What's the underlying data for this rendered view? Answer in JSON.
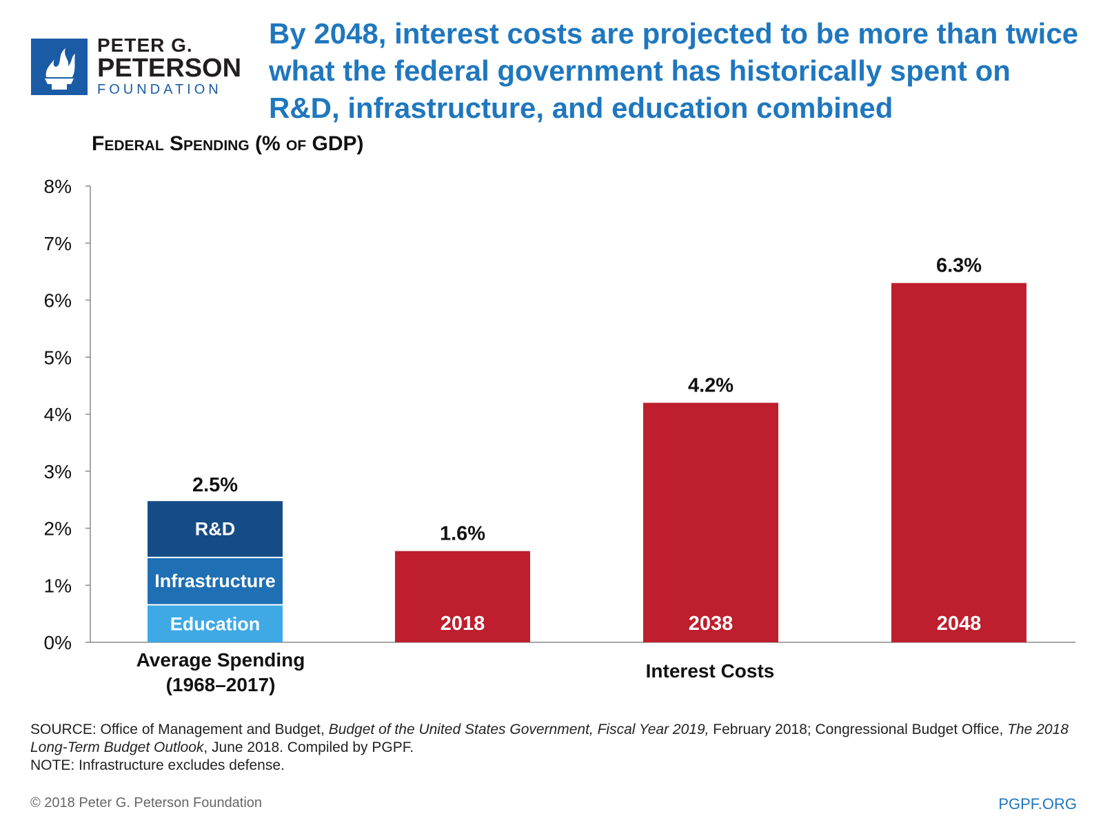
{
  "logo": {
    "line1": "PETER G.",
    "line2": "PETERSON",
    "line3": "FOUNDATION"
  },
  "headline": "By 2048, interest costs are projected to be more than twice what the federal government has historically spent on R&D, infrastructure, and education combined",
  "y_title": {
    "prefix": "Federal Spending",
    "suffix": " (% of GDP)"
  },
  "colors": {
    "title_blue": "#1f77be",
    "rd": "#164c85",
    "infrastructure": "#1e6fb4",
    "education": "#3fa9e6",
    "interest": "#be1e2d"
  },
  "chart_data": {
    "type": "bar",
    "title": "Federal Spending (% of GDP)",
    "xlabel": "",
    "ylabel": "Federal Spending (% of GDP)",
    "ylim": [
      0,
      8
    ],
    "y_ticks": [
      "0%",
      "1%",
      "2%",
      "3%",
      "4%",
      "5%",
      "6%",
      "7%",
      "8%"
    ],
    "stacked_bar": {
      "category": "Average Spending (1968–2017)",
      "total_label": "2.5%",
      "segments": [
        {
          "name": "Education",
          "value": 0.67
        },
        {
          "name": "Infrastructure",
          "value": 0.83
        },
        {
          "name": "R&D",
          "value": 1.0
        }
      ]
    },
    "interest_bars": {
      "group_label": "Interest Costs",
      "bars": [
        {
          "year": "2018",
          "value": 1.6,
          "label": "1.6%"
        },
        {
          "year": "2038",
          "value": 4.2,
          "label": "4.2%"
        },
        {
          "year": "2048",
          "value": 6.3,
          "label": "6.3%"
        }
      ]
    }
  },
  "category_labels": {
    "avg_line1": "Average Spending",
    "avg_line2": "(1968–2017)",
    "interest": "Interest Costs"
  },
  "source": {
    "p1": "SOURCE: Office of Management and Budget, ",
    "i1": "Budget of the United States Government, Fiscal Year 2019,",
    "p2": " February 2018; Congressional Budget Office, ",
    "i2": "The 2018 Long-Term Budget Outlook",
    "p3": ", June 2018. Compiled by PGPF.",
    "note": "NOTE: Infrastructure excludes defense."
  },
  "footer": {
    "copyright": "© 2018 Peter G. Peterson Foundation",
    "site": "PGPF.ORG"
  }
}
